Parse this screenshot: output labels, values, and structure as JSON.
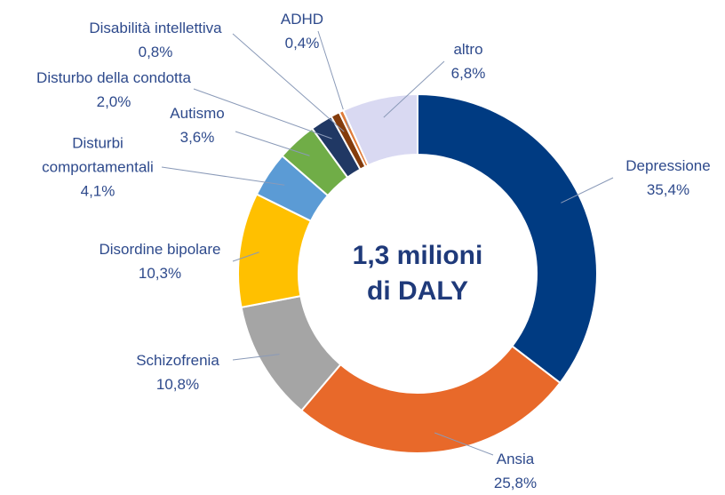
{
  "chart_data": {
    "type": "donut",
    "center_label": "1,3 milioni di DALY",
    "categories": [
      "Depressione",
      "Ansia",
      "Schizofrenia",
      "Disordine bipolare",
      "Disturbi comportamentali",
      "Autismo",
      "Disturbo della condotta",
      "Disabilità intellettiva",
      "ADHD",
      "altro"
    ],
    "values": [
      35.4,
      25.8,
      10.8,
      10.3,
      4.1,
      3.6,
      2.0,
      0.8,
      0.4,
      6.8
    ],
    "value_labels": [
      "35,4%",
      "25,8%",
      "10,8%",
      "10,3%",
      "4,1%",
      "3,6%",
      "2,0%",
      "0,8%",
      "0,4%",
      "6,8%"
    ],
    "colors": [
      "#003b82",
      "#e8692a",
      "#a5a5a5",
      "#ffc000",
      "#5b9bd5",
      "#70ad47",
      "#203864",
      "#843c0c",
      "#e07b39",
      "#d9d9f2"
    ]
  }
}
